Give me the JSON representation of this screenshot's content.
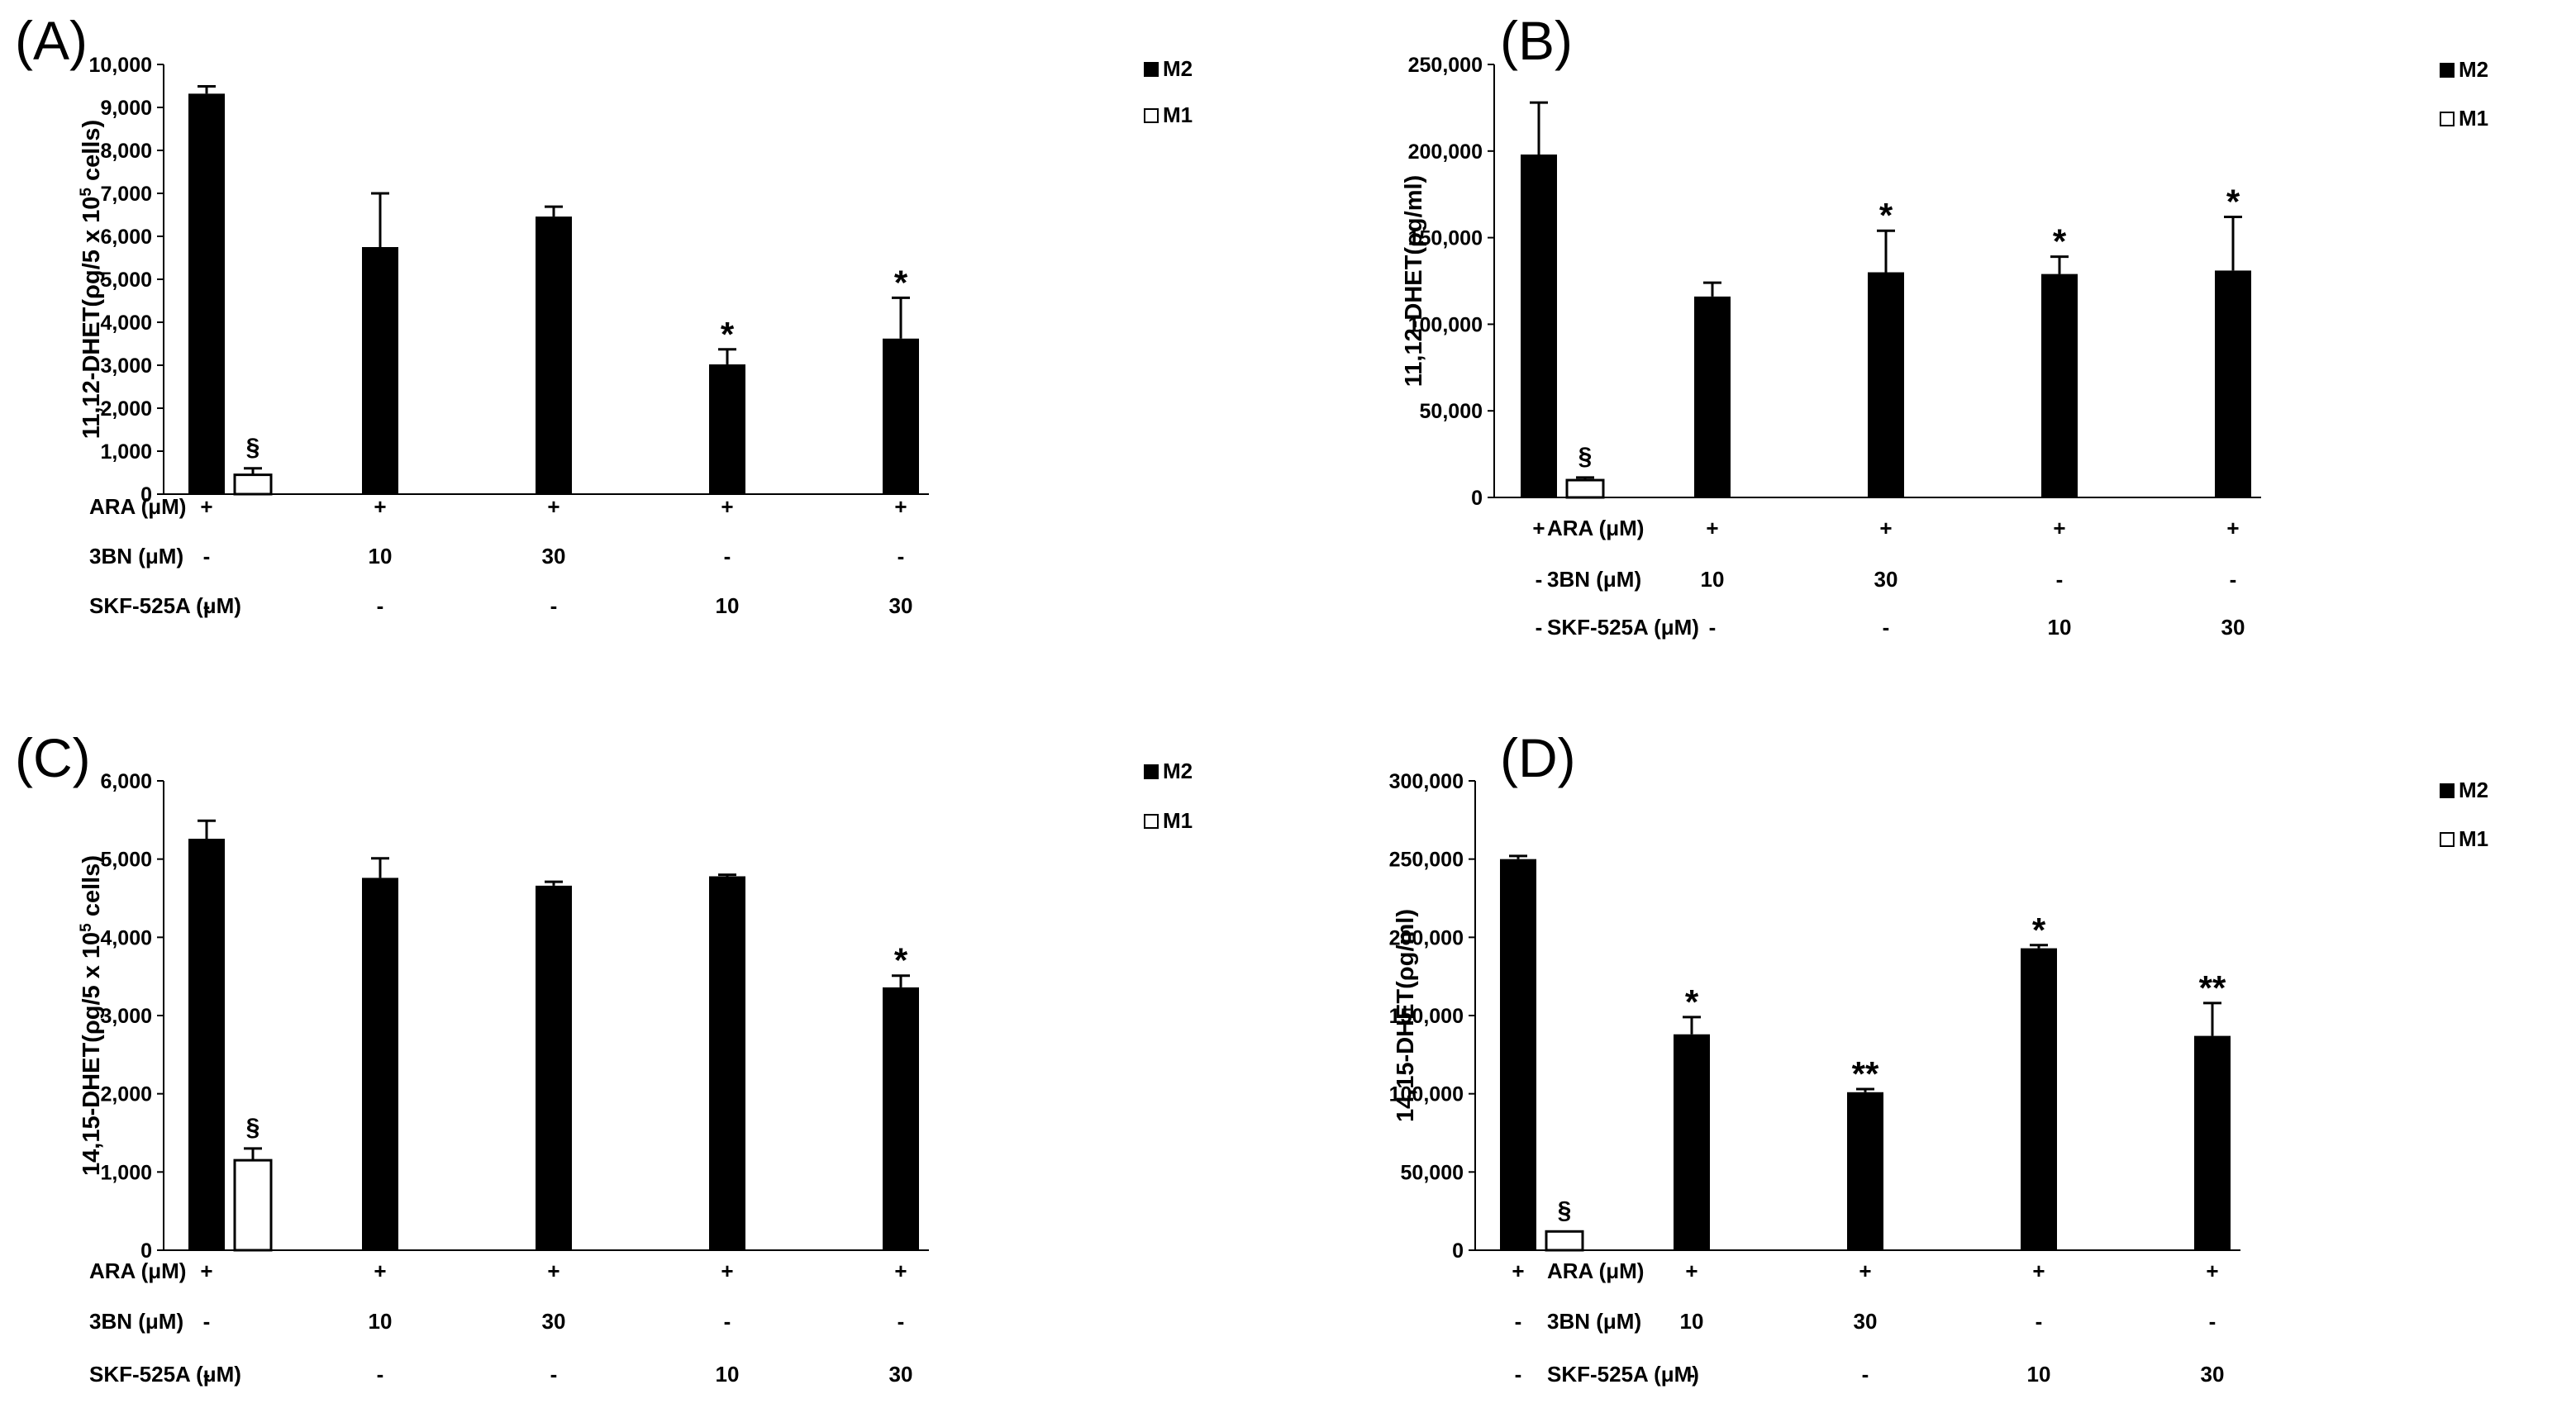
{
  "chart_data": [
    {
      "id": "A",
      "type": "bar",
      "panel_label": "(A)",
      "ylabel": "11,12-DHET(ρg/5 x 10^5 cells)",
      "ylabel_parts": [
        "11,12-DHET(ρg/5 x 10",
        "5",
        " cells)"
      ],
      "ylim": [
        0,
        10000
      ],
      "yticks": [
        0,
        1000,
        2000,
        3000,
        4000,
        5000,
        6000,
        7000,
        8000,
        9000,
        10000
      ],
      "ytick_labels": [
        "0",
        "1,000",
        "2,000",
        "3,000",
        "4,000",
        "5,000",
        "6,000",
        "7,000",
        "8,000",
        "9,000",
        "10,000"
      ],
      "legend": [
        {
          "name": "M2",
          "color": "#000000"
        },
        {
          "name": "M1",
          "color": "#ffffff"
        }
      ],
      "groups": [
        {
          "bars": [
            {
              "series": "M2",
              "value": 9320,
              "error": 170,
              "annot": ""
            },
            {
              "series": "M1",
              "value": 450,
              "error": 150,
              "annot": "§"
            }
          ]
        },
        {
          "bars": [
            {
              "series": "M2",
              "value": 5750,
              "error": 1250,
              "annot": ""
            }
          ]
        },
        {
          "bars": [
            {
              "series": "M2",
              "value": 6460,
              "error": 230,
              "annot": ""
            }
          ]
        },
        {
          "bars": [
            {
              "series": "M2",
              "value": 3020,
              "error": 350,
              "annot": "*"
            }
          ]
        },
        {
          "bars": [
            {
              "series": "M2",
              "value": 3620,
              "error": 950,
              "annot": "*"
            }
          ]
        }
      ],
      "conditions": [
        {
          "label": "ARA (μM)",
          "values": [
            "+",
            "+",
            "+",
            "+",
            "+"
          ]
        },
        {
          "label": "3BN (μM)",
          "values": [
            "-",
            "10",
            "30",
            "-",
            "-"
          ]
        },
        {
          "label": "SKF-525A (μM)",
          "values": [
            "-",
            "-",
            "-",
            "10",
            "30"
          ]
        }
      ]
    },
    {
      "id": "B",
      "type": "bar",
      "panel_label": "(B)",
      "ylabel": "11,12-DHET(ρg/ml)",
      "ylabel_parts": [
        "11,12-DHET(ρg/ml)"
      ],
      "ylim": [
        0,
        250000
      ],
      "yticks": [
        0,
        50000,
        100000,
        150000,
        200000,
        250000
      ],
      "ytick_labels": [
        "0",
        "50,000",
        "100,000",
        "150,000",
        "200,000",
        "250,000"
      ],
      "legend": [
        {
          "name": "M2",
          "color": "#000000"
        },
        {
          "name": "M1",
          "color": "#ffffff"
        }
      ],
      "groups": [
        {
          "bars": [
            {
              "series": "M2",
              "value": 198000,
              "error": 30000,
              "annot": ""
            },
            {
              "series": "M1",
              "value": 10000,
              "error": 1500,
              "annot": "§"
            }
          ]
        },
        {
          "bars": [
            {
              "series": "M2",
              "value": 116000,
              "error": 8000,
              "annot": ""
            }
          ]
        },
        {
          "bars": [
            {
              "series": "M2",
              "value": 130000,
              "error": 24000,
              "annot": "*"
            }
          ]
        },
        {
          "bars": [
            {
              "series": "M2",
              "value": 129000,
              "error": 10000,
              "annot": "*"
            }
          ]
        },
        {
          "bars": [
            {
              "series": "M2",
              "value": 131000,
              "error": 31000,
              "annot": "*"
            }
          ]
        }
      ],
      "conditions": [
        {
          "label": "ARA (μM)",
          "values": [
            "+",
            "+",
            "+",
            "+",
            "+"
          ]
        },
        {
          "label": "3BN (μM)",
          "values": [
            "-",
            "10",
            "30",
            "-",
            "-"
          ]
        },
        {
          "label": "SKF-525A (μM)",
          "values": [
            "-",
            "-",
            "-",
            "10",
            "30"
          ]
        }
      ]
    },
    {
      "id": "C",
      "type": "bar",
      "panel_label": "(C)",
      "ylabel": "14,15-DHET(ρg/5 x 10^5 cells)",
      "ylabel_parts": [
        "14,15-DHET(ρg/5 x 10",
        "5",
        " cells)"
      ],
      "ylim": [
        0,
        6000
      ],
      "yticks": [
        0,
        1000,
        2000,
        3000,
        4000,
        5000,
        6000
      ],
      "ytick_labels": [
        "0",
        "1,000",
        "2,000",
        "3,000",
        "4,000",
        "5,000",
        "6,000"
      ],
      "legend": [
        {
          "name": "M2",
          "color": "#000000"
        },
        {
          "name": "M1",
          "color": "#ffffff"
        }
      ],
      "groups": [
        {
          "bars": [
            {
              "series": "M2",
              "value": 5260,
              "error": 230,
              "annot": ""
            },
            {
              "series": "M1",
              "value": 1150,
              "error": 150,
              "annot": "§"
            }
          ]
        },
        {
          "bars": [
            {
              "series": "M2",
              "value": 4760,
              "error": 250,
              "annot": ""
            }
          ]
        },
        {
          "bars": [
            {
              "series": "M2",
              "value": 4660,
              "error": 50,
              "annot": ""
            }
          ]
        },
        {
          "bars": [
            {
              "series": "M2",
              "value": 4780,
              "error": 20,
              "annot": ""
            }
          ]
        },
        {
          "bars": [
            {
              "series": "M2",
              "value": 3360,
              "error": 150,
              "annot": "*"
            }
          ]
        }
      ],
      "conditions": [
        {
          "label": "ARA (μM)",
          "values": [
            "+",
            "+",
            "+",
            "+",
            "+"
          ]
        },
        {
          "label": "3BN (μM)",
          "values": [
            "-",
            "10",
            "30",
            "-",
            "-"
          ]
        },
        {
          "label": "SKF-525A (μM)",
          "values": [
            "-",
            "-",
            "-",
            "10",
            "30"
          ]
        }
      ]
    },
    {
      "id": "D",
      "type": "bar",
      "panel_label": "(D)",
      "ylabel": "14,15-DHET(ρg/ml)",
      "ylabel_parts": [
        "14,15-DHET(ρg/ml)"
      ],
      "ylim": [
        0,
        300000
      ],
      "yticks": [
        0,
        50000,
        100000,
        150000,
        200000,
        250000,
        300000
      ],
      "ytick_labels": [
        "0",
        "50,000",
        "100,000",
        "150,000",
        "200,000",
        "250,000",
        "300,000"
      ],
      "legend": [
        {
          "name": "M2",
          "color": "#000000"
        },
        {
          "name": "M1",
          "color": "#ffffff"
        }
      ],
      "groups": [
        {
          "bars": [
            {
              "series": "M2",
              "value": 250000,
              "error": 2000,
              "annot": ""
            },
            {
              "series": "M1",
              "value": 12000,
              "error": 0,
              "annot": "§"
            }
          ]
        },
        {
          "bars": [
            {
              "series": "M2",
              "value": 138000,
              "error": 11000,
              "annot": "*"
            }
          ]
        },
        {
          "bars": [
            {
              "series": "M2",
              "value": 101000,
              "error": 2000,
              "annot": "**"
            }
          ]
        },
        {
          "bars": [
            {
              "series": "M2",
              "value": 193000,
              "error": 2000,
              "annot": "*"
            }
          ]
        },
        {
          "bars": [
            {
              "series": "M2",
              "value": 137000,
              "error": 21000,
              "annot": "**"
            }
          ]
        }
      ],
      "conditions": [
        {
          "label": "ARA (μM)",
          "values": [
            "+",
            "+",
            "+",
            "+",
            "+"
          ]
        },
        {
          "label": "3BN (μM)",
          "values": [
            "-",
            "10",
            "30",
            "-",
            "-"
          ]
        },
        {
          "label": "SKF-525A (μM)",
          "values": [
            "-",
            "-",
            "-",
            "10",
            "30"
          ]
        }
      ]
    }
  ]
}
